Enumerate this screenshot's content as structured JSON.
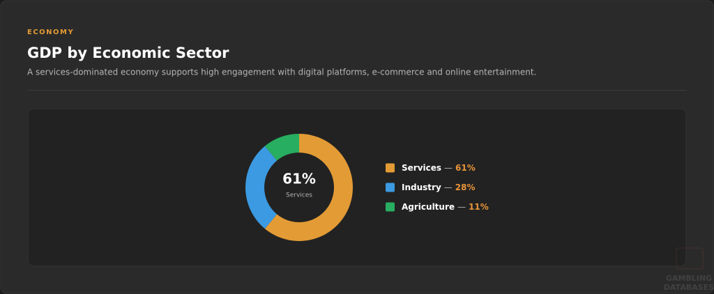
{
  "header": {
    "eyebrow": "ECONOMY",
    "title": "GDP by Economic Sector",
    "subtitle": "A services-dominated economy supports high engagement with digital platforms, e-commerce and online entertainment."
  },
  "chart_data": {
    "type": "pie",
    "donut": true,
    "categories": [
      "Services",
      "Industry",
      "Agriculture"
    ],
    "values": [
      61,
      28,
      11
    ],
    "value_labels": [
      "61%",
      "28%",
      "11%"
    ],
    "colors": [
      "#e39b35",
      "#3b9ae1",
      "#27ae60"
    ],
    "separator": "—"
  },
  "watermark": [
    "GAMBLING",
    "DATABASES"
  ]
}
